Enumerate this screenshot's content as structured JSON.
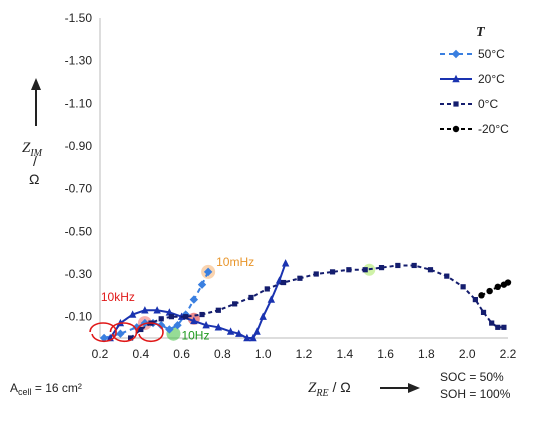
{
  "chart_data": {
    "type": "line",
    "xlabel_main": "Z",
    "xlabel_sub": "RE",
    "xlabel_unit": " / Ω",
    "ylabel_main": "Z",
    "ylabel_sub": "IM",
    "ylabel_slash": "/",
    "ylabel_unit": "Ω",
    "xlim": [
      0.2,
      2.2
    ],
    "ylim": [
      -1.5,
      0
    ],
    "x_ticks": [
      0.2,
      0.4,
      0.6,
      0.8,
      1.0,
      1.2,
      1.4,
      1.6,
      1.8,
      2.0,
      2.2
    ],
    "x_tick_labels": [
      "0.2",
      "0.4",
      "0.6",
      "0.8",
      "1.0",
      "1.2",
      "1.4",
      "1.6",
      "1.8",
      "2.0",
      "2.2"
    ],
    "y_ticks": [
      -1.5,
      -1.3,
      -1.1,
      -0.9,
      -0.7,
      -0.5,
      -0.3,
      -0.1
    ],
    "y_tick_labels": [
      "-1.50",
      "-1.30",
      "-1.10",
      "-0.90",
      "-0.70",
      "-0.50",
      "-0.30",
      "-0.10"
    ],
    "legend_title": "T",
    "legend_position": "top-right",
    "series": [
      {
        "name": "50°C",
        "color": "#3a7fe0",
        "marker": "diamond",
        "dash": "5,4",
        "x": [
          0.22,
          0.3,
          0.38,
          0.42,
          0.46,
          0.5,
          0.54,
          0.58,
          0.62,
          0.66,
          0.7,
          0.73
        ],
        "y": [
          0.0,
          -0.02,
          -0.05,
          -0.07,
          -0.07,
          -0.06,
          -0.04,
          -0.06,
          -0.11,
          -0.18,
          -0.25,
          -0.31
        ]
      },
      {
        "name": "20°C",
        "color": "#1a33b0",
        "marker": "triangle",
        "dash": "",
        "x": [
          0.25,
          0.3,
          0.36,
          0.42,
          0.48,
          0.54,
          0.6,
          0.66,
          0.72,
          0.78,
          0.84,
          0.88,
          0.92,
          0.95,
          0.97,
          1.0,
          1.04,
          1.08,
          1.11
        ],
        "y": [
          0.0,
          -0.07,
          -0.11,
          -0.13,
          -0.13,
          -0.12,
          -0.1,
          -0.08,
          -0.06,
          -0.05,
          -0.03,
          -0.02,
          0.0,
          0.0,
          -0.03,
          -0.1,
          -0.18,
          -0.27,
          -0.35
        ]
      },
      {
        "name": "0°C",
        "color": "#141d6e",
        "marker": "square",
        "dash": "4,3",
        "x": [
          0.35,
          0.4,
          0.45,
          0.5,
          0.55,
          0.62,
          0.7,
          0.78,
          0.86,
          0.94,
          1.02,
          1.1,
          1.18,
          1.26,
          1.34,
          1.42,
          1.5,
          1.58,
          1.66,
          1.74,
          1.82,
          1.9,
          1.98,
          2.04,
          2.08,
          2.12,
          2.15,
          2.18
        ],
        "y": [
          0.0,
          -0.04,
          -0.07,
          -0.09,
          -0.1,
          -0.1,
          -0.11,
          -0.13,
          -0.16,
          -0.19,
          -0.23,
          -0.26,
          -0.28,
          -0.3,
          -0.31,
          -0.32,
          -0.32,
          -0.33,
          -0.34,
          -0.34,
          -0.32,
          -0.29,
          -0.24,
          -0.18,
          -0.12,
          -0.07,
          -0.05,
          -0.05
        ]
      },
      {
        "name": "-20°C",
        "color": "#000000",
        "marker": "circle",
        "dash": "4,3",
        "x": [
          2.07,
          2.11,
          2.15,
          2.18,
          2.2
        ],
        "y": [
          -0.2,
          -0.22,
          -0.24,
          -0.25,
          -0.26
        ]
      }
    ],
    "annotations": [
      {
        "text": "10mHz",
        "color": "#e8952a",
        "x": 0.73,
        "y": -0.31,
        "dx": 8,
        "dy": -6,
        "highlight": "#f5b070"
      },
      {
        "text": "10kHz",
        "color": "#e01818",
        "x": 0.42,
        "y": -0.07,
        "dx": -44,
        "dy": -22,
        "highlight": "#f07070"
      },
      {
        "text": "10Hz",
        "color": "#1f9a1f",
        "x": 0.56,
        "y": -0.02,
        "dx": 8,
        "dy": 6,
        "highlight": "#3fbf3f"
      }
    ],
    "extra_highlights": [
      {
        "x": 0.66,
        "y": -0.09,
        "color": "#e03030"
      },
      {
        "x": 1.52,
        "y": -0.32,
        "color": "#a8e860"
      }
    ],
    "circled_x": [
      0.22,
      0.32,
      0.45
    ],
    "circle_color": "#e01818"
  },
  "footer": {
    "acell_prefix": "A",
    "acell_sub": "cell",
    "acell_value": " = 16 cm²",
    "soc": "SOC =   50%",
    "soh": "SOH = 100%"
  }
}
